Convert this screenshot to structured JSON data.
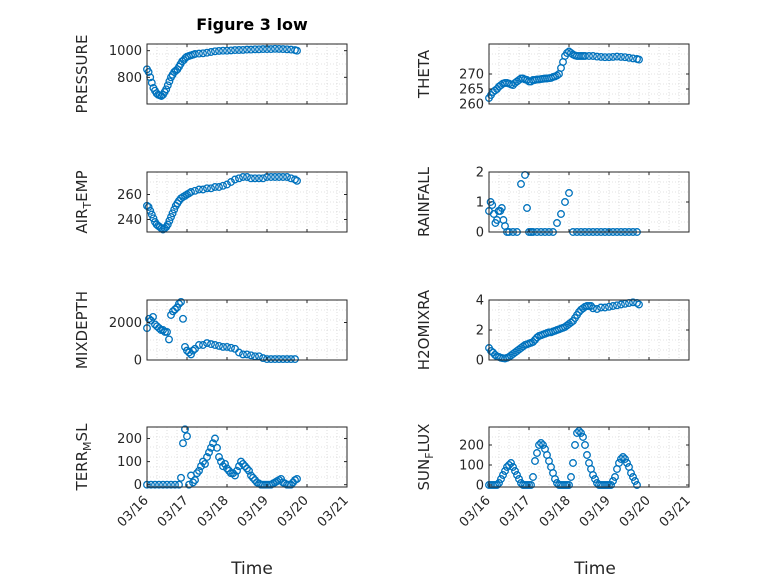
{
  "figure": {
    "title": "Figure 3 low",
    "x_axis_label": "Time",
    "x_tick_labels": [
      "03/16",
      "03/17",
      "03/18",
      "03/19",
      "03/20",
      "03/21"
    ],
    "marker_color": "#0072BD"
  },
  "chart_data": [
    {
      "type": "scatter",
      "ylabel": "PRESSURE",
      "xlabel": "",
      "title": "Figure 3 low",
      "xlim": [
        0,
        5
      ],
      "ylim": [
        600,
        1050
      ],
      "yticks": [
        800,
        1000
      ],
      "grid": true,
      "x": [
        0.0,
        0.04,
        0.08,
        0.12,
        0.16,
        0.2,
        0.24,
        0.28,
        0.32,
        0.36,
        0.4,
        0.44,
        0.48,
        0.52,
        0.56,
        0.6,
        0.64,
        0.68,
        0.72,
        0.76,
        0.8,
        0.84,
        0.88,
        0.92,
        0.96,
        1.0,
        1.05,
        1.1,
        1.15,
        1.2,
        1.3,
        1.4,
        1.5,
        1.6,
        1.7,
        1.8,
        1.9,
        2.0,
        2.1,
        2.2,
        2.3,
        2.4,
        2.5,
        2.6,
        2.7,
        2.8,
        2.9,
        3.0,
        3.1,
        3.2,
        3.3,
        3.4,
        3.5,
        3.6,
        3.7,
        3.75
      ],
      "y": [
        860,
        840,
        800,
        760,
        720,
        700,
        680,
        670,
        665,
        660,
        670,
        690,
        710,
        740,
        770,
        800,
        820,
        840,
        850,
        860,
        880,
        900,
        920,
        930,
        945,
        955,
        960,
        965,
        970,
        975,
        978,
        980,
        985,
        990,
        995,
        998,
        1000,
        1000,
        1002,
        1004,
        1005,
        1006,
        1008,
        1008,
        1010,
        1010,
        1012,
        1012,
        1012,
        1014,
        1013,
        1012,
        1010,
        1008,
        1004,
        1000
      ]
    },
    {
      "type": "scatter",
      "ylabel": "THETA",
      "xlabel": "",
      "xlim": [
        0,
        5
      ],
      "ylim": [
        260,
        280
      ],
      "yticks": [
        260,
        265,
        270
      ],
      "grid": true,
      "x": [
        0.0,
        0.05,
        0.1,
        0.15,
        0.2,
        0.25,
        0.3,
        0.35,
        0.4,
        0.45,
        0.5,
        0.55,
        0.6,
        0.65,
        0.7,
        0.75,
        0.8,
        0.85,
        0.9,
        0.95,
        1.0,
        1.05,
        1.1,
        1.15,
        1.2,
        1.25,
        1.3,
        1.35,
        1.4,
        1.45,
        1.5,
        1.55,
        1.6,
        1.65,
        1.7,
        1.75,
        1.8,
        1.85,
        1.9,
        1.95,
        2.0,
        2.05,
        2.1,
        2.15,
        2.2,
        2.25,
        2.3,
        2.35,
        2.4,
        2.5,
        2.6,
        2.7,
        2.8,
        2.9,
        3.0,
        3.1,
        3.2,
        3.3,
        3.4,
        3.5,
        3.6,
        3.7,
        3.75
      ],
      "y": [
        262,
        263,
        264,
        264.5,
        265,
        265.8,
        266.3,
        266.8,
        267,
        267,
        266.8,
        266.5,
        266.3,
        267,
        267.5,
        268,
        268.5,
        268.5,
        268.2,
        268,
        267.5,
        267.5,
        268,
        268,
        268.2,
        268.2,
        268.3,
        268.4,
        268.5,
        268.5,
        268.6,
        268.7,
        269,
        269.2,
        269.5,
        270,
        272,
        274,
        276,
        277,
        277.5,
        277,
        276.5,
        276.2,
        276,
        276,
        276,
        276,
        276,
        276,
        276,
        275.8,
        275.7,
        275.6,
        275.6,
        275.7,
        275.8,
        275.7,
        275.6,
        275.4,
        275.2,
        275,
        274.8
      ]
    },
    {
      "type": "scatter",
      "ylabel": "AIR_TEMP",
      "xlabel": "",
      "xlim": [
        0,
        5
      ],
      "ylim": [
        230,
        278
      ],
      "yticks": [
        240,
        260
      ],
      "grid": true,
      "x": [
        0.0,
        0.04,
        0.08,
        0.12,
        0.16,
        0.2,
        0.24,
        0.28,
        0.32,
        0.36,
        0.4,
        0.44,
        0.48,
        0.52,
        0.56,
        0.6,
        0.64,
        0.68,
        0.72,
        0.76,
        0.8,
        0.85,
        0.9,
        0.95,
        1.0,
        1.05,
        1.1,
        1.2,
        1.3,
        1.4,
        1.5,
        1.6,
        1.7,
        1.8,
        1.9,
        2.0,
        2.1,
        2.2,
        2.3,
        2.4,
        2.5,
        2.6,
        2.7,
        2.8,
        2.9,
        3.0,
        3.1,
        3.2,
        3.3,
        3.4,
        3.5,
        3.6,
        3.7,
        3.75
      ],
      "y": [
        251,
        250,
        247,
        244,
        241,
        238,
        236,
        235,
        234,
        233,
        232,
        233,
        234,
        236,
        239,
        242,
        245,
        248,
        251,
        253,
        255,
        257,
        258,
        259,
        260,
        261,
        262,
        263,
        264,
        264,
        265,
        265,
        266,
        266,
        267,
        268,
        270,
        272,
        273,
        274,
        274,
        273,
        273,
        273,
        273,
        274,
        274,
        274,
        274,
        274,
        274,
        273,
        272,
        271
      ]
    },
    {
      "type": "scatter",
      "ylabel": "RAINFALL",
      "xlabel": "",
      "xlim": [
        0,
        5
      ],
      "ylim": [
        0,
        2
      ],
      "yticks": [
        0,
        1,
        2
      ],
      "grid": true,
      "x": [
        0.0,
        0.04,
        0.08,
        0.12,
        0.16,
        0.2,
        0.24,
        0.28,
        0.32,
        0.36,
        0.4,
        0.45,
        0.5,
        0.6,
        0.7,
        0.8,
        0.9,
        0.95,
        1.0,
        1.05,
        1.1,
        1.2,
        1.3,
        1.4,
        1.5,
        1.6,
        1.7,
        1.8,
        1.9,
        2.0,
        2.1,
        2.2,
        2.3,
        2.4,
        2.5,
        2.6,
        2.7,
        2.8,
        2.9,
        3.0,
        3.1,
        3.2,
        3.3,
        3.4,
        3.5,
        3.6,
        3.7
      ],
      "y": [
        0.7,
        1.0,
        0.9,
        0.6,
        0.3,
        0.4,
        0.7,
        0.7,
        0.8,
        0.4,
        0.2,
        0,
        0,
        0,
        0,
        1.6,
        1.9,
        0.8,
        0,
        0,
        0,
        0,
        0,
        0,
        0,
        0,
        0.3,
        0.6,
        1.0,
        1.3,
        0,
        0,
        0,
        0,
        0,
        0,
        0,
        0,
        0,
        0,
        0,
        0,
        0,
        0,
        0,
        0,
        0
      ]
    },
    {
      "type": "scatter",
      "ylabel": "MIXDEPTH",
      "xlabel": "",
      "xlim": [
        0,
        5
      ],
      "ylim": [
        0,
        3200
      ],
      "yticks": [
        0,
        2000
      ],
      "grid": true,
      "x": [
        0.0,
        0.05,
        0.1,
        0.15,
        0.2,
        0.25,
        0.3,
        0.35,
        0.4,
        0.45,
        0.5,
        0.55,
        0.6,
        0.65,
        0.7,
        0.75,
        0.8,
        0.85,
        0.9,
        0.95,
        1.0,
        1.05,
        1.1,
        1.15,
        1.2,
        1.3,
        1.4,
        1.5,
        1.6,
        1.7,
        1.8,
        1.9,
        2.0,
        2.1,
        2.2,
        2.3,
        2.4,
        2.5,
        2.6,
        2.7,
        2.8,
        2.9,
        3.0,
        3.1,
        3.2,
        3.3,
        3.4,
        3.5,
        3.6,
        3.7
      ],
      "y": [
        1700,
        2200,
        2100,
        2300,
        1900,
        1800,
        1700,
        1600,
        1600,
        1500,
        1500,
        1100,
        2400,
        2600,
        2700,
        2800,
        3000,
        3100,
        2200,
        700,
        500,
        400,
        300,
        500,
        600,
        800,
        800,
        900,
        850,
        800,
        750,
        700,
        700,
        650,
        600,
        400,
        300,
        300,
        250,
        200,
        200,
        100,
        50,
        50,
        50,
        50,
        50,
        50,
        50,
        50
      ]
    },
    {
      "type": "scatter",
      "ylabel": "H2OMIXRA",
      "xlabel": "",
      "xlim": [
        0,
        5
      ],
      "ylim": [
        0,
        4
      ],
      "yticks": [
        0,
        2,
        4
      ],
      "grid": true,
      "x": [
        0.0,
        0.05,
        0.1,
        0.15,
        0.2,
        0.25,
        0.3,
        0.35,
        0.4,
        0.45,
        0.5,
        0.55,
        0.6,
        0.65,
        0.7,
        0.75,
        0.8,
        0.85,
        0.9,
        0.95,
        1.0,
        1.05,
        1.1,
        1.15,
        1.2,
        1.25,
        1.3,
        1.35,
        1.4,
        1.45,
        1.5,
        1.55,
        1.6,
        1.65,
        1.7,
        1.75,
        1.8,
        1.85,
        1.9,
        1.95,
        2.0,
        2.05,
        2.1,
        2.15,
        2.2,
        2.25,
        2.3,
        2.35,
        2.4,
        2.45,
        2.5,
        2.55,
        2.6,
        2.7,
        2.8,
        2.9,
        3.0,
        3.1,
        3.2,
        3.3,
        3.4,
        3.5,
        3.6,
        3.7,
        3.75
      ],
      "y": [
        0.8,
        0.6,
        0.5,
        0.35,
        0.25,
        0.2,
        0.15,
        0.12,
        0.1,
        0.15,
        0.2,
        0.3,
        0.4,
        0.5,
        0.6,
        0.7,
        0.8,
        0.9,
        1.0,
        1.05,
        1.1,
        1.15,
        1.2,
        1.35,
        1.5,
        1.6,
        1.65,
        1.7,
        1.75,
        1.8,
        1.85,
        1.85,
        1.9,
        1.95,
        2.0,
        2.05,
        2.1,
        2.15,
        2.2,
        2.3,
        2.4,
        2.5,
        2.6,
        2.8,
        3.0,
        3.2,
        3.35,
        3.45,
        3.55,
        3.6,
        3.6,
        3.6,
        3.45,
        3.4,
        3.5,
        3.5,
        3.55,
        3.6,
        3.65,
        3.7,
        3.75,
        3.8,
        3.85,
        3.8,
        3.7
      ]
    },
    {
      "type": "scatter",
      "ylabel": "TERR_MSL",
      "xlabel": "",
      "xlim": [
        0,
        5
      ],
      "ylim": [
        -10,
        250
      ],
      "yticks": [
        0,
        100,
        200
      ],
      "grid": true,
      "x": [
        0.0,
        0.1,
        0.2,
        0.3,
        0.4,
        0.5,
        0.6,
        0.7,
        0.8,
        0.85,
        0.9,
        0.95,
        1.0,
        1.05,
        1.1,
        1.15,
        1.2,
        1.25,
        1.3,
        1.35,
        1.4,
        1.45,
        1.5,
        1.55,
        1.6,
        1.65,
        1.7,
        1.75,
        1.8,
        1.85,
        1.9,
        1.95,
        2.0,
        2.05,
        2.1,
        2.15,
        2.2,
        2.25,
        2.3,
        2.35,
        2.4,
        2.45,
        2.5,
        2.55,
        2.6,
        2.65,
        2.7,
        2.75,
        2.8,
        2.85,
        2.9,
        2.95,
        3.0,
        3.05,
        3.1,
        3.15,
        3.2,
        3.25,
        3.3,
        3.35,
        3.4,
        3.45,
        3.5,
        3.55,
        3.6,
        3.65,
        3.7,
        3.75
      ],
      "y": [
        0,
        0,
        0,
        0,
        0,
        0,
        0,
        0,
        0,
        30,
        180,
        240,
        210,
        0,
        40,
        10,
        20,
        50,
        60,
        80,
        100,
        90,
        120,
        140,
        160,
        180,
        200,
        160,
        120,
        100,
        80,
        90,
        70,
        60,
        50,
        50,
        40,
        60,
        80,
        100,
        90,
        80,
        70,
        60,
        40,
        30,
        20,
        10,
        5,
        0,
        0,
        0,
        0,
        0,
        0,
        5,
        10,
        15,
        20,
        25,
        10,
        5,
        0,
        0,
        0,
        10,
        20,
        25
      ]
    },
    {
      "type": "scatter",
      "ylabel": "SUN_FLUX",
      "xlabel": "",
      "xlim": [
        0,
        5
      ],
      "ylim": [
        -10,
        290
      ],
      "yticks": [
        0,
        100,
        200
      ],
      "grid": true,
      "x": [
        0.0,
        0.05,
        0.1,
        0.15,
        0.2,
        0.25,
        0.3,
        0.35,
        0.4,
        0.45,
        0.5,
        0.55,
        0.6,
        0.65,
        0.7,
        0.75,
        0.8,
        0.85,
        0.9,
        0.95,
        1.0,
        1.05,
        1.1,
        1.15,
        1.2,
        1.25,
        1.3,
        1.35,
        1.4,
        1.45,
        1.5,
        1.55,
        1.6,
        1.65,
        1.7,
        1.75,
        1.8,
        1.85,
        1.9,
        1.95,
        2.0,
        2.05,
        2.1,
        2.15,
        2.2,
        2.25,
        2.3,
        2.35,
        2.4,
        2.45,
        2.5,
        2.55,
        2.6,
        2.65,
        2.7,
        2.75,
        2.8,
        2.85,
        2.9,
        2.95,
        3.0,
        3.05,
        3.1,
        3.15,
        3.2,
        3.25,
        3.3,
        3.35,
        3.4,
        3.45,
        3.5,
        3.55,
        3.6,
        3.65,
        3.7
      ],
      "y": [
        0,
        0,
        0,
        0,
        0,
        10,
        30,
        50,
        70,
        90,
        100,
        110,
        90,
        70,
        50,
        30,
        10,
        0,
        0,
        0,
        0,
        0,
        40,
        120,
        160,
        200,
        210,
        200,
        180,
        150,
        120,
        90,
        60,
        30,
        10,
        0,
        0,
        0,
        0,
        0,
        0,
        40,
        110,
        200,
        260,
        270,
        260,
        240,
        200,
        150,
        110,
        80,
        50,
        30,
        10,
        0,
        0,
        0,
        0,
        0,
        0,
        0,
        20,
        40,
        80,
        110,
        130,
        140,
        130,
        110,
        90,
        60,
        40,
        20,
        0
      ]
    }
  ]
}
